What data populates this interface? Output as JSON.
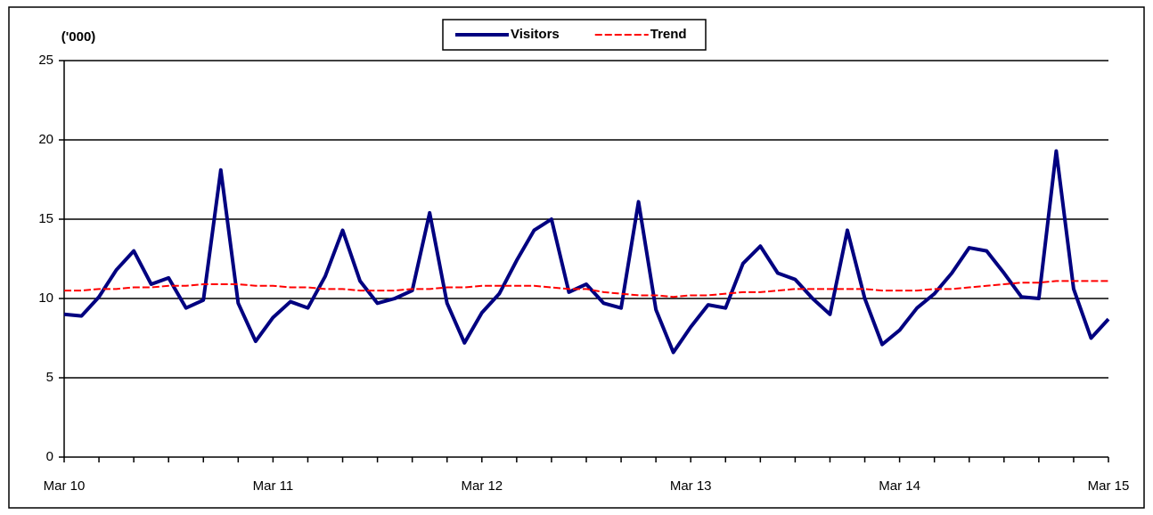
{
  "chart_data": {
    "type": "line",
    "y_label": "('000)",
    "categories": [
      "Mar 10",
      null,
      null,
      null,
      null,
      null,
      null,
      null,
      null,
      null,
      null,
      null,
      "Mar 11",
      null,
      null,
      null,
      null,
      null,
      null,
      null,
      null,
      null,
      null,
      null,
      "Mar 12",
      null,
      null,
      null,
      null,
      null,
      null,
      null,
      null,
      null,
      null,
      null,
      "Mar 13",
      null,
      null,
      null,
      null,
      null,
      null,
      null,
      null,
      null,
      null,
      null,
      "Mar 14",
      null,
      null,
      null,
      null,
      null,
      null,
      null,
      null,
      null,
      null,
      null,
      "Mar 15"
    ],
    "series": [
      {
        "name": "Visitors",
        "color": "#000080",
        "style": "solid",
        "values": [
          9.0,
          8.9,
          10.1,
          11.8,
          13.0,
          10.9,
          11.3,
          9.4,
          9.9,
          18.1,
          9.7,
          7.3,
          8.8,
          9.8,
          9.4,
          11.4,
          14.3,
          11.1,
          9.7,
          10.0,
          10.5,
          15.4,
          9.7,
          7.2,
          9.1,
          10.3,
          12.4,
          14.3,
          15.0,
          10.4,
          10.9,
          9.7,
          9.4,
          16.1,
          9.3,
          6.6,
          8.2,
          9.6,
          9.4,
          12.2,
          13.3,
          11.6,
          11.2,
          10.0,
          9.0,
          14.3,
          10.0,
          7.1,
          8.0,
          9.4,
          10.3,
          11.6,
          13.2,
          13.0,
          11.6,
          10.1,
          10.0,
          19.3,
          10.6,
          7.5,
          8.7
        ]
      },
      {
        "name": "Trend",
        "color": "#ff0000",
        "style": "dashed",
        "values": [
          10.5,
          10.5,
          10.6,
          10.6,
          10.7,
          10.7,
          10.8,
          10.8,
          10.9,
          10.9,
          10.9,
          10.8,
          10.8,
          10.7,
          10.7,
          10.6,
          10.6,
          10.5,
          10.5,
          10.5,
          10.6,
          10.6,
          10.7,
          10.7,
          10.8,
          10.8,
          10.8,
          10.8,
          10.7,
          10.6,
          10.6,
          10.4,
          10.3,
          10.2,
          10.2,
          10.1,
          10.2,
          10.2,
          10.3,
          10.4,
          10.4,
          10.5,
          10.6,
          10.6,
          10.6,
          10.6,
          10.6,
          10.5,
          10.5,
          10.5,
          10.6,
          10.6,
          10.7,
          10.8,
          10.9,
          11.0,
          11.0,
          11.1,
          11.1,
          11.1,
          11.1
        ]
      }
    ],
    "ylim": [
      0,
      25
    ],
    "yticks": [
      0,
      5,
      10,
      15,
      20,
      25
    ],
    "grid": true,
    "legend": "top"
  }
}
